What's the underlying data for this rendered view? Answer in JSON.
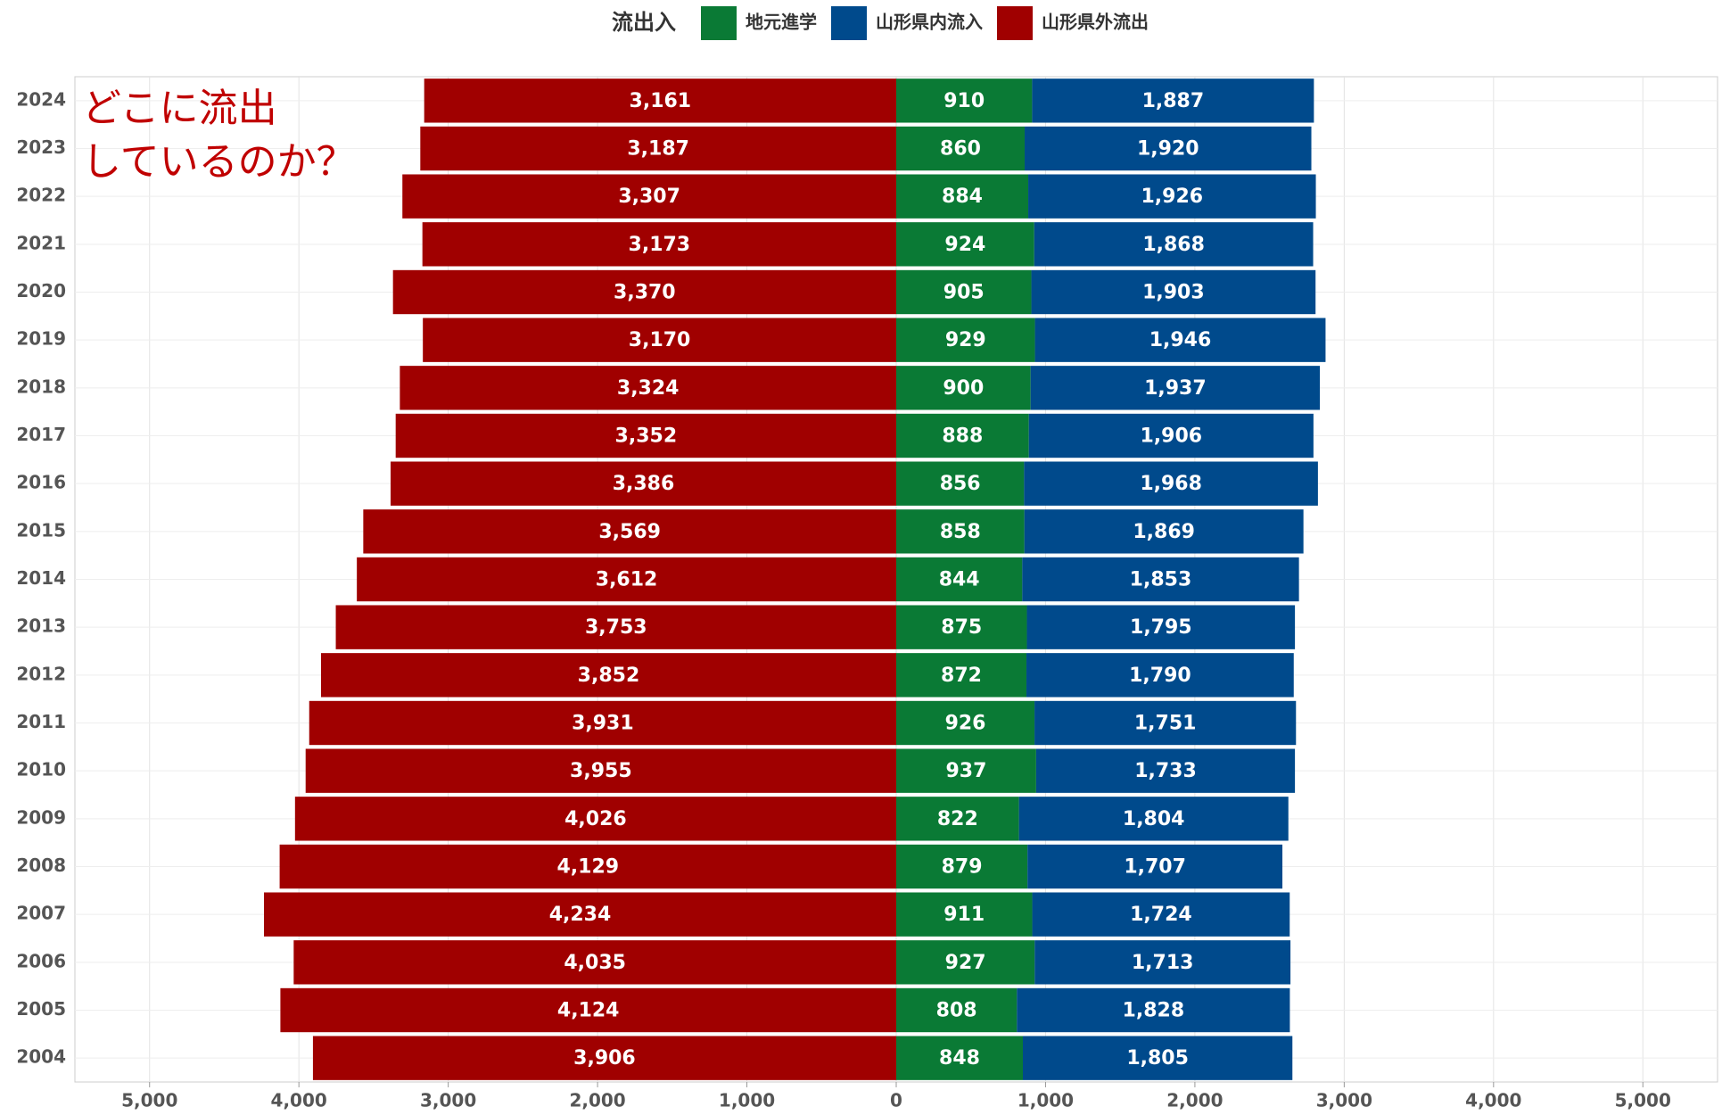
{
  "chart_data": {
    "type": "diverging_bar",
    "legend_title": "流出入",
    "annotation_lines": [
      "どこに流出",
      "しているのか？"
    ],
    "categories": [
      "2024",
      "2023",
      "2022",
      "2021",
      "2020",
      "2019",
      "2018",
      "2017",
      "2016",
      "2015",
      "2014",
      "2013",
      "2012",
      "2011",
      "2010",
      "2009",
      "2008",
      "2007",
      "2006",
      "2005",
      "2004"
    ],
    "series": [
      {
        "name": "地元進学",
        "color": "#0a7a35",
        "stack": "right",
        "values": [
          910,
          860,
          884,
          924,
          905,
          929,
          900,
          888,
          856,
          858,
          844,
          875,
          872,
          926,
          937,
          822,
          879,
          911,
          927,
          808,
          848
        ]
      },
      {
        "name": "山形県内流入",
        "color": "#004a8c",
        "stack": "right",
        "values": [
          1887,
          1920,
          1926,
          1868,
          1903,
          1946,
          1937,
          1906,
          1968,
          1869,
          1853,
          1795,
          1790,
          1751,
          1733,
          1804,
          1707,
          1724,
          1713,
          1828,
          1805
        ],
        "value_labels": [
          "1,887",
          "1,920",
          "1,926",
          "1,868",
          "1,903",
          "1,946",
          "1,937",
          "1,906",
          "1,968",
          "1,869",
          "1,853",
          "1,795",
          "1,790",
          "1,751",
          "1,733",
          "1,804",
          "1,707",
          "1,724",
          "1,713",
          "1,828",
          "1,805"
        ]
      },
      {
        "name": "山形県外流出",
        "color": "#a00000",
        "stack": "left",
        "values": [
          -3161,
          -3187,
          -3307,
          -3173,
          -3370,
          -3170,
          -3324,
          -3352,
          -3386,
          -3569,
          -3612,
          -3753,
          -3852,
          -3931,
          -3955,
          -4026,
          -4129,
          -4234,
          -4035,
          -4124,
          -3906
        ],
        "value_labels": [
          "3,161",
          "3,187",
          "3,307",
          "3,173",
          "3,370",
          "3,170",
          "3,324",
          "3,352",
          "3,386",
          "3,569",
          "3,612",
          "3,753",
          "3,852",
          "3,931",
          "3,955",
          "4,026",
          "4,129",
          "4,234",
          "4,035",
          "4,124",
          "3,906"
        ]
      }
    ],
    "xlim": [
      -5500,
      5500
    ],
    "xticks": [
      {
        "value": -5000,
        "label": "5,000"
      },
      {
        "value": -4000,
        "label": "4,000"
      },
      {
        "value": -3000,
        "label": "3,000"
      },
      {
        "value": -2000,
        "label": "2,000"
      },
      {
        "value": -1000,
        "label": "1,000"
      },
      0,
      {
        "value": 1000,
        "label": "1,000"
      },
      {
        "value": 2000,
        "label": "2,000"
      },
      {
        "value": 3000,
        "label": "3,000"
      },
      {
        "value": 4000,
        "label": "4,000"
      },
      {
        "value": 5000,
        "label": "5,000"
      }
    ],
    "grid": true
  }
}
